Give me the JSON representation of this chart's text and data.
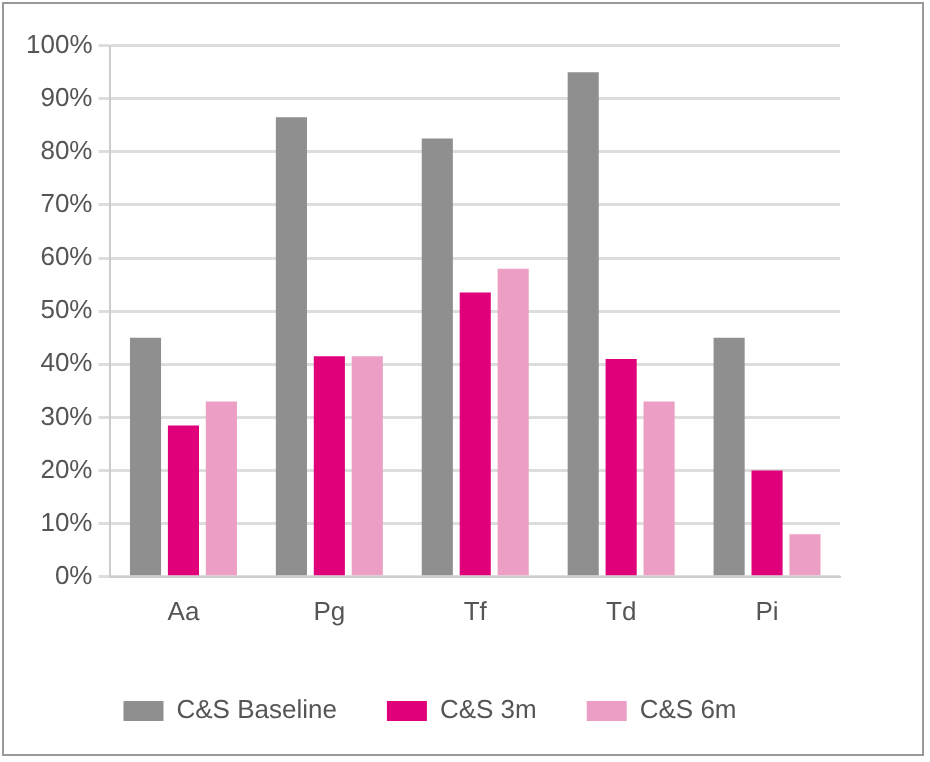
{
  "chart_data": {
    "type": "bar",
    "categories": [
      "Aa",
      "Pg",
      "Tf",
      "Td",
      "Pi"
    ],
    "series": [
      {
        "name": "C&S Baseline",
        "color": "#8f8f8f",
        "values": [
          45,
          86.5,
          82.5,
          95,
          45
        ]
      },
      {
        "name": "C&S 3m",
        "color": "#e0007a",
        "values": [
          28.5,
          41.5,
          53.5,
          41,
          20
        ]
      },
      {
        "name": "C&S 6m",
        "color": "#ec9ec4",
        "values": [
          33,
          41.5,
          58,
          33,
          8
        ]
      }
    ],
    "ylim": [
      0,
      100
    ],
    "yticks": [
      {
        "value": 0,
        "label": "0%"
      },
      {
        "value": 10,
        "label": "10%"
      },
      {
        "value": 20,
        "label": "20%"
      },
      {
        "value": 30,
        "label": "30%"
      },
      {
        "value": 40,
        "label": "40%"
      },
      {
        "value": 50,
        "label": "50%"
      },
      {
        "value": 60,
        "label": "60%"
      },
      {
        "value": 70,
        "label": "70%"
      },
      {
        "value": 80,
        "label": "80%"
      },
      {
        "value": 90,
        "label": "90%"
      },
      {
        "value": 100,
        "label": "100%"
      }
    ],
    "grid": "y",
    "legend": "bottom"
  }
}
